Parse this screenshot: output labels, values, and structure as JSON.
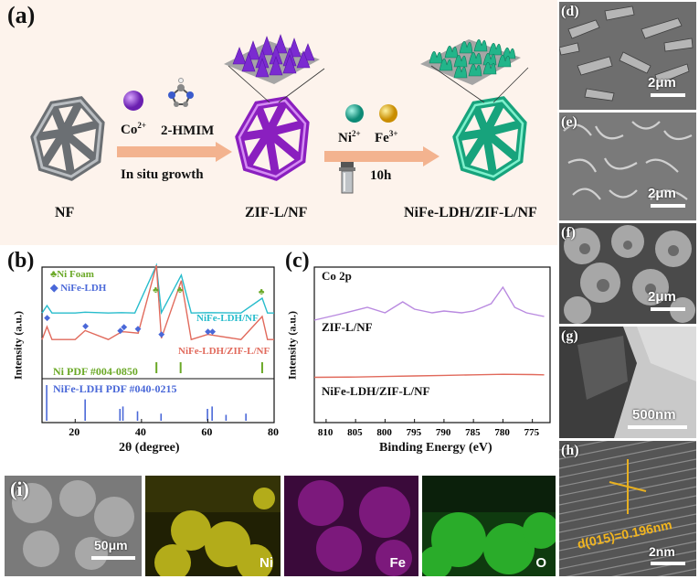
{
  "panel_a": {
    "label": "(a)",
    "nf": "NF",
    "co": "Co",
    "co_sup": "2+",
    "hmim": "2-HMIM",
    "insitu": "In situ growth",
    "zif": "ZIF-L/NF",
    "ni": "Ni",
    "ni_sup": "2+",
    "fe": "Fe",
    "fe_sup": "3+",
    "time": "10h",
    "product": "NiFe-LDH/ZIF-L/NF"
  },
  "panel_b": {
    "label": "(b)",
    "legend_foam": "Ni Foam",
    "legend_ldh": "NiFe-LDH",
    "curve1": "NiFe-LDH/NF",
    "curve2": "NiFe-LDH/ZIF-L/NF",
    "ref1": "Ni  PDF #004-0850",
    "ref2": "NiFe-LDH  PDF #040-0215",
    "ylabel": "Intensity (a.u.)",
    "xlabel": "2θ (degree)",
    "xticks": [
      "20",
      "40",
      "60",
      "80"
    ]
  },
  "panel_c": {
    "label": "(c)",
    "title": "Co 2p",
    "curve1": "ZIF-L/NF",
    "curve2": "NiFe-LDH/ZIF-L/NF",
    "ylabel": "Intensity (a.u.)",
    "xlabel": "Binding Energy (eV)",
    "xticks": [
      "810",
      "805",
      "800",
      "795",
      "790",
      "785",
      "780",
      "775"
    ]
  },
  "right_panels": {
    "d": {
      "label": "(d)",
      "scale": "2μm"
    },
    "e": {
      "label": "(e)",
      "scale": "2μm"
    },
    "f": {
      "label": "(f)",
      "scale": "2μm"
    },
    "g": {
      "label": "(g)",
      "scale": "500nm"
    },
    "h": {
      "label": "(h)",
      "scale": "2nm",
      "lattice": "d(015)=0.196nm"
    }
  },
  "panel_i": {
    "label": "(i)",
    "scale": "50μm",
    "maps": [
      "Ni",
      "Fe",
      "O"
    ]
  },
  "chart_data": [
    {
      "type": "line",
      "xlabel": "2θ (degree)",
      "ylabel": "Intensity (a.u.)",
      "xlim": [
        10,
        80
      ],
      "series": [
        {
          "name": "NiFe-LDH/NF",
          "x": [
            10,
            11.5,
            13,
            20,
            23,
            30,
            34,
            38,
            44.5,
            46,
            52,
            55,
            60,
            70,
            76.4,
            78,
            80
          ],
          "y": [
            0.1,
            0.55,
            0.1,
            0.1,
            0.15,
            0.1,
            0.12,
            0.1,
            3.0,
            0.12,
            2.4,
            0.1,
            0.12,
            0.1,
            1.0,
            0.1,
            0.1
          ]
        },
        {
          "name": "NiFe-LDH/ZIF-L/NF",
          "x": [
            10,
            11.5,
            13,
            20,
            23,
            30,
            34,
            35,
            39,
            44.5,
            46,
            52,
            55,
            60,
            61,
            70,
            76.4,
            78,
            80
          ],
          "y": [
            0.1,
            0.6,
            0.1,
            0.1,
            0.45,
            0.1,
            0.4,
            0.4,
            0.35,
            3.0,
            0.15,
            2.4,
            0.1,
            0.3,
            0.28,
            0.1,
            1.0,
            0.1,
            0.1
          ]
        }
      ]
    },
    {
      "type": "line",
      "xlabel": "Binding Energy (eV)",
      "ylabel": "Intensity (a.u.)",
      "xlim": [
        812,
        772
      ],
      "series": [
        {
          "name": "ZIF-L/NF",
          "x": [
            812,
            808,
            803,
            800,
            797,
            795,
            792,
            790,
            787,
            785,
            782,
            780,
            778,
            776,
            773
          ],
          "y": [
            0.1,
            0.25,
            0.45,
            0.3,
            0.6,
            0.4,
            0.3,
            0.35,
            0.3,
            0.35,
            0.55,
            1.0,
            0.45,
            0.3,
            0.2
          ]
        },
        {
          "name": "NiFe-LDH/ZIF-L/NF",
          "x": [
            812,
            805,
            800,
            795,
            790,
            785,
            780,
            775,
            773
          ],
          "y": [
            0.05,
            0.06,
            0.08,
            0.1,
            0.12,
            0.14,
            0.16,
            0.15,
            0.14
          ]
        }
      ]
    }
  ]
}
